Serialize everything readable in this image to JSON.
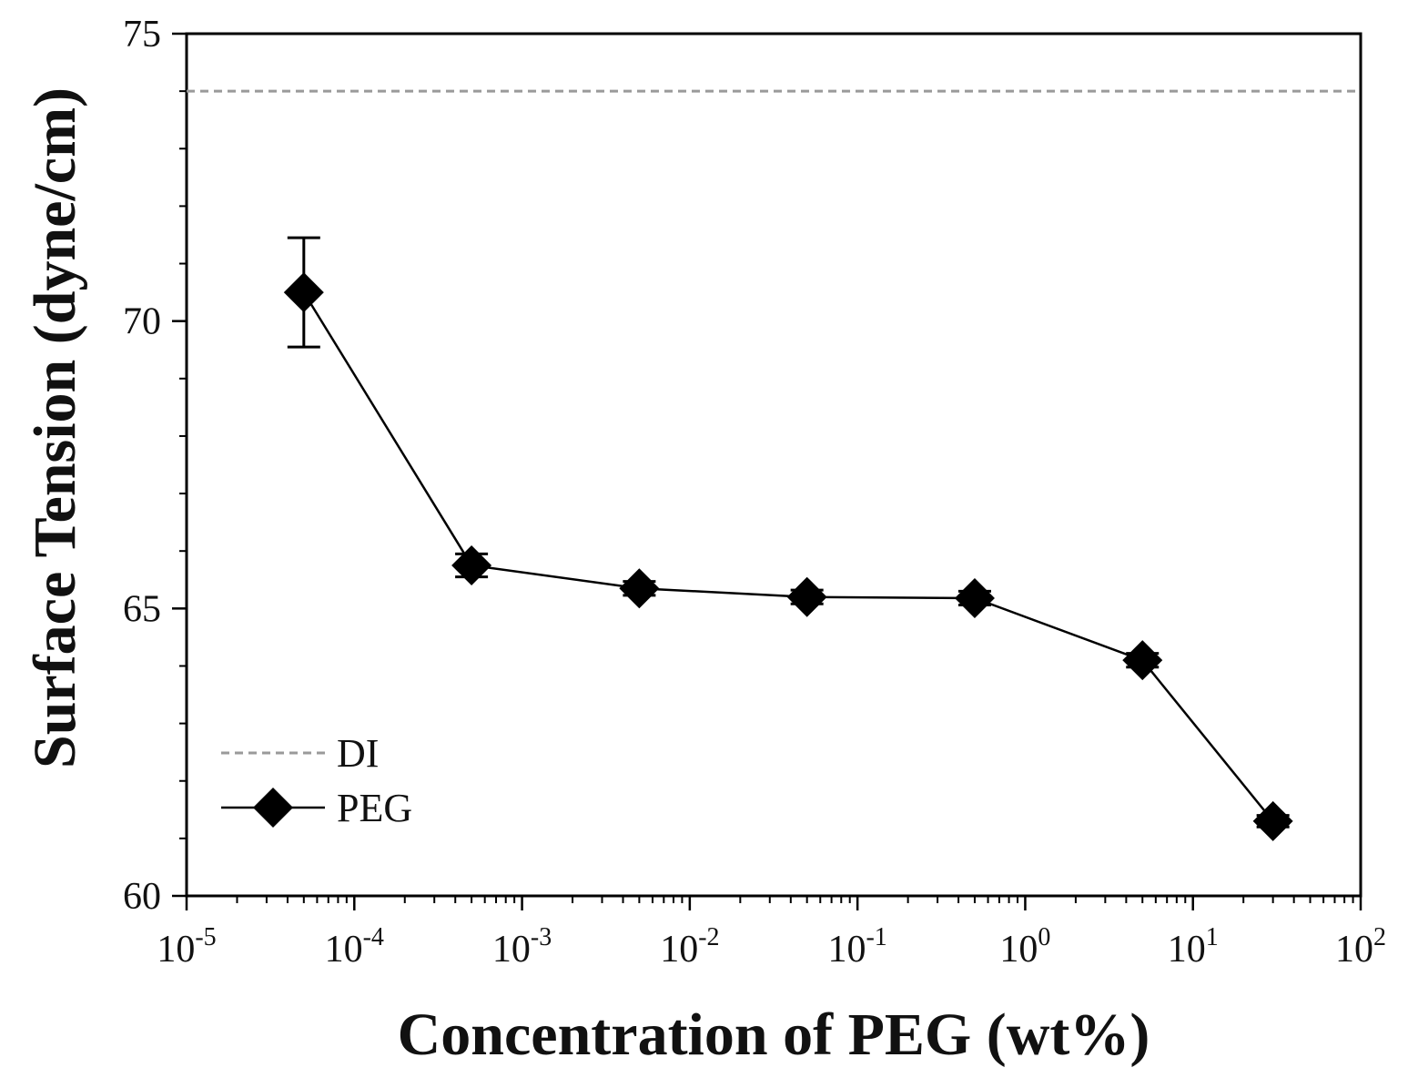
{
  "chart_data": {
    "type": "line",
    "title": "",
    "xlabel": "Concentration of PEG (wt%)",
    "ylabel": "Surface Tension (dyne/cm)",
    "x_scale": "log",
    "xlim": [
      1e-05,
      100
    ],
    "ylim": [
      60,
      75
    ],
    "x_ticks": [
      {
        "value": 1e-05,
        "base": "10",
        "exp": "-5"
      },
      {
        "value": 0.0001,
        "base": "10",
        "exp": "-4"
      },
      {
        "value": 0.001,
        "base": "10",
        "exp": "-3"
      },
      {
        "value": 0.01,
        "base": "10",
        "exp": "-2"
      },
      {
        "value": 0.1,
        "base": "10",
        "exp": "-1"
      },
      {
        "value": 1,
        "base": "10",
        "exp": "0"
      },
      {
        "value": 10,
        "base": "10",
        "exp": "1"
      },
      {
        "value": 100,
        "base": "10",
        "exp": "2"
      }
    ],
    "y_ticks": [
      {
        "value": 60,
        "label": "60"
      },
      {
        "value": 65,
        "label": "65"
      },
      {
        "value": 70,
        "label": "70"
      },
      {
        "value": 75,
        "label": "75"
      }
    ],
    "legend_position": "lower-left",
    "series": [
      {
        "name": "DI",
        "style": "dashed",
        "color": "#9a9a9a",
        "y_constant": 74.0
      },
      {
        "name": "PEG",
        "style": "solid-diamond",
        "color": "#000000",
        "x": [
          5e-05,
          0.0005,
          0.005,
          0.05,
          0.5,
          5,
          30
        ],
        "y": [
          70.5,
          65.75,
          65.35,
          65.2,
          65.18,
          64.1,
          61.3
        ],
        "yerr": [
          0.95,
          0.2,
          0.12,
          0.12,
          0.12,
          0.12,
          0.1
        ]
      }
    ]
  }
}
